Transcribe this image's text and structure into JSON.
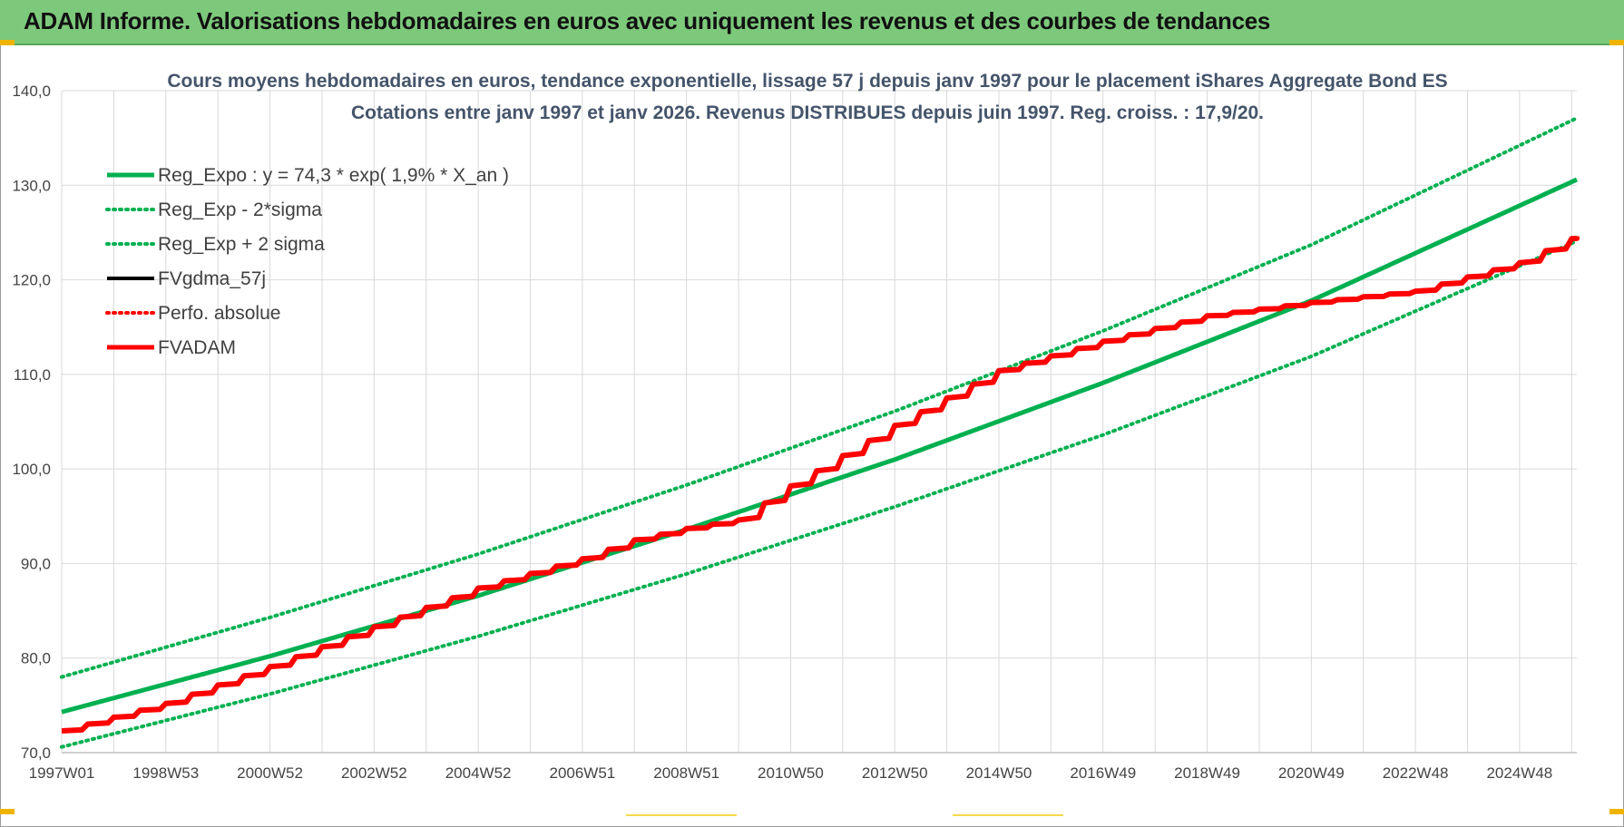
{
  "header": {
    "title": "ADAM Informe. Valorisations hebdomadaires en euros avec uniquement les revenus et des courbes de tendances"
  },
  "colors": {
    "header_bg": "#7dc97b",
    "trend": "#00b050",
    "fv_gdma": "#000000",
    "fvadam": "#ff0000",
    "perfo": "#ff0000"
  },
  "chart_data": {
    "type": "line",
    "title": "Cours moyens hebdomadaires en euros, tendance exponentielle, lissage 57 j depuis janv 1997  pour le placement iShares Aggregate Bond ES",
    "subtitle": "Cotations entre janv 1997 et janv 2026. Revenus DISTRIBUES depuis juin 1997. Reg. croiss. : 17,9/20.",
    "xlabel": "",
    "ylabel": "",
    "ylim": [
      70,
      140
    ],
    "y_ticks": [
      "70,0",
      "80,0",
      "90,0",
      "100,0",
      "110,0",
      "120,0",
      "130,0",
      "140,0"
    ],
    "xlim": [
      1997.0,
      2026.1
    ],
    "x_tick_labels": [
      "1997W01",
      "1998W53",
      "2000W52",
      "2002W52",
      "2004W52",
      "2006W51",
      "2008W51",
      "2010W50",
      "2012W50",
      "2014W50",
      "2016W49",
      "2018W49",
      "2020W49",
      "2022W48",
      "2024W48"
    ],
    "x_tick_years": [
      1997.0,
      1999.0,
      2001.0,
      2003.0,
      2005.0,
      2007.0,
      2009.0,
      2011.0,
      2013.0,
      2015.0,
      2017.0,
      2019.0,
      2021.0,
      2023.0,
      2025.0
    ],
    "grid": true,
    "legend_position": "top-left",
    "series": [
      {
        "name": "Reg_Expo : y = 74,3 * exp( 1,9% *  X_an )",
        "style": "solid-thick",
        "color": "#00b050",
        "x": [
          1997.0,
          2001.0,
          2005.0,
          2009.0,
          2013.0,
          2017.0,
          2021.0,
          2026.1
        ],
        "y": [
          74.3,
          80.2,
          86.6,
          93.6,
          101.0,
          109.1,
          117.8,
          130.6
        ]
      },
      {
        "name": "Reg_Exp - 2*sigma",
        "style": "dotted",
        "color": "#00b050",
        "x": [
          1997.0,
          2001.0,
          2005.0,
          2009.0,
          2013.0,
          2017.0,
          2021.0,
          2026.1
        ],
        "y": [
          70.6,
          76.2,
          82.3,
          88.9,
          96.0,
          103.6,
          111.9,
          124.1
        ]
      },
      {
        "name": "Reg_Exp + 2 sigma",
        "style": "dotted",
        "color": "#00b050",
        "x": [
          1997.0,
          2001.0,
          2005.0,
          2009.0,
          2013.0,
          2017.0,
          2021.0,
          2026.1
        ],
        "y": [
          78.0,
          84.3,
          91.0,
          98.3,
          106.1,
          114.6,
          123.7,
          137.1
        ]
      },
      {
        "name": "FVgdma_57j",
        "style": "solid",
        "color": "#000000",
        "x": [
          1997.0,
          1999.0,
          2001.0,
          2003.0,
          2005.0,
          2007.0,
          2008.0,
          2009.0,
          2010.0,
          2011.0,
          2013.0,
          2015.0,
          2017.0,
          2019.0,
          2020.0,
          2021.0,
          2023.0,
          2025.0,
          2026.1
        ],
        "y": [
          72.3,
          75.2,
          79.1,
          83.3,
          87.4,
          90.5,
          92.5,
          93.7,
          94.6,
          98.2,
          104.6,
          110.4,
          113.5,
          116.2,
          116.9,
          117.6,
          118.8,
          121.8,
          124.6
        ]
      },
      {
        "name": "Perfo. absolue",
        "style": "dotted",
        "color": "#ff0000",
        "x": [],
        "y": []
      },
      {
        "name": "FVADAM",
        "style": "solid-thick",
        "color": "#ff0000",
        "x": [
          1997.0,
          1999.0,
          2001.0,
          2003.0,
          2005.0,
          2007.0,
          2008.0,
          2009.0,
          2010.0,
          2011.0,
          2013.0,
          2015.0,
          2017.0,
          2019.0,
          2020.0,
          2021.0,
          2023.0,
          2025.0,
          2026.1
        ],
        "y": [
          72.3,
          75.2,
          79.1,
          83.3,
          87.4,
          90.5,
          92.5,
          93.7,
          94.6,
          98.2,
          104.6,
          110.4,
          113.5,
          116.2,
          116.9,
          117.6,
          118.8,
          121.8,
          124.6
        ]
      }
    ]
  }
}
